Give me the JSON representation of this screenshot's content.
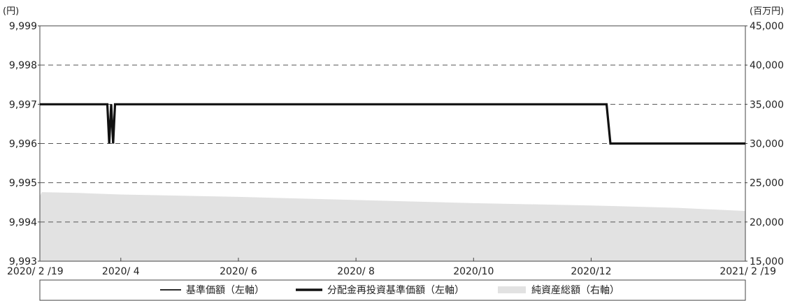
{
  "chart_data": {
    "type": "line",
    "left_axis": {
      "unit": "(円)",
      "range": [
        9993,
        9999
      ],
      "ticks": [
        9993,
        9994,
        9995,
        9996,
        9997,
        9998,
        9999
      ],
      "tick_labels": [
        "9,993",
        "9,994",
        "9,995",
        "9,996",
        "9,997",
        "9,998",
        "9,999"
      ]
    },
    "right_axis": {
      "unit": "(百万円)",
      "range": [
        15000,
        45000
      ],
      "ticks": [
        15000,
        20000,
        25000,
        30000,
        35000,
        40000,
        45000
      ],
      "tick_labels": [
        "15,000",
        "20,000",
        "25,000",
        "30,000",
        "35,000",
        "40,000",
        "45,000"
      ]
    },
    "x_axis": {
      "range": [
        "2020-02-19",
        "2021-02-19"
      ],
      "ticks": [
        "2020-02-19",
        "2020-04-01",
        "2020-06-01",
        "2020-08-01",
        "2020-10-01",
        "2020-12-01",
        "2021-02-19"
      ],
      "tick_labels": [
        "2020/ 2 /19",
        "2020/ 4",
        "2020/ 6",
        "2020/ 8",
        "2020/10",
        "2020/12",
        "2021/ 2 /19"
      ]
    },
    "grid": "horizontal-dashed",
    "legend_position": "bottom",
    "series": [
      {
        "name": "基準価額（左軸）",
        "axis": "left",
        "style": "thin-line",
        "color": "#111111",
        "points": [
          [
            "2020-02-19",
            9997
          ],
          [
            "2020-03-25",
            9997
          ],
          [
            "2020-03-26",
            9996
          ],
          [
            "2020-03-27",
            9997
          ],
          [
            "2020-03-28",
            9996
          ],
          [
            "2020-03-29",
            9997
          ],
          [
            "2020-12-09",
            9997
          ],
          [
            "2020-12-11",
            9996
          ],
          [
            "2021-02-19",
            9996
          ]
        ]
      },
      {
        "name": "分配金再投資基準価額（左軸）",
        "axis": "left",
        "style": "thick-line",
        "color": "#111111",
        "points": [
          [
            "2020-02-19",
            9997
          ],
          [
            "2020-03-25",
            9997
          ],
          [
            "2020-03-26",
            9996
          ],
          [
            "2020-03-27",
            9997
          ],
          [
            "2020-03-28",
            9996
          ],
          [
            "2020-03-29",
            9997
          ],
          [
            "2020-12-09",
            9997
          ],
          [
            "2020-12-11",
            9996
          ],
          [
            "2021-02-19",
            9996
          ]
        ]
      },
      {
        "name": "純資産総額（右軸）",
        "axis": "right",
        "style": "area",
        "color": "#e2e2e2",
        "points": [
          [
            "2020-02-19",
            23300
          ],
          [
            "2020-02-20",
            23800
          ],
          [
            "2020-03-10",
            23700
          ],
          [
            "2020-04-01",
            23500
          ],
          [
            "2020-06-01",
            23200
          ],
          [
            "2020-08-01",
            22800
          ],
          [
            "2020-10-01",
            22400
          ],
          [
            "2020-12-01",
            22100
          ],
          [
            "2021-01-15",
            21800
          ],
          [
            "2021-02-19",
            21400
          ]
        ]
      }
    ]
  }
}
